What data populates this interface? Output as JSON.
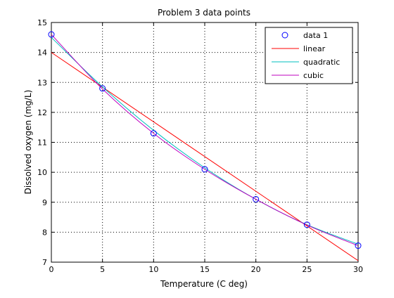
{
  "chart_data": {
    "type": "line",
    "title": "Problem 3 data points",
    "xlabel": "Temperature (C deg)",
    "ylabel": "Dissolved oxygen (mg/L)",
    "xlim": [
      0,
      30
    ],
    "ylim": [
      7,
      15
    ],
    "x_ticks": [
      "0",
      "5",
      "10",
      "15",
      "20",
      "25",
      "30"
    ],
    "y_ticks": [
      "7",
      "8",
      "9",
      "10",
      "11",
      "12",
      "13",
      "14",
      "15"
    ],
    "grid": true,
    "legend_position": "top-right",
    "data_points": {
      "name": "data 1",
      "color": "#0000ff",
      "marker": "circle",
      "x": [
        0,
        5,
        10,
        15,
        20,
        25,
        30
      ],
      "y": [
        14.6,
        12.8,
        11.3,
        10.1,
        9.1,
        8.25,
        7.55
      ]
    },
    "series": [
      {
        "name": "linear",
        "color": "#ff0000",
        "x": [
          0,
          30
        ],
        "y": [
          14.0,
          7.05
        ]
      },
      {
        "name": "quadratic",
        "color": "#00bfbf",
        "x": [
          0,
          5,
          10,
          15,
          20,
          25,
          30
        ],
        "y": [
          14.5,
          12.85,
          11.4,
          10.15,
          9.1,
          8.25,
          7.6
        ]
      },
      {
        "name": "cubic",
        "color": "#bf00bf",
        "x": [
          0,
          5,
          10,
          15,
          20,
          25,
          30
        ],
        "y": [
          14.6,
          12.78,
          11.3,
          10.1,
          9.1,
          8.24,
          7.55
        ]
      }
    ]
  }
}
